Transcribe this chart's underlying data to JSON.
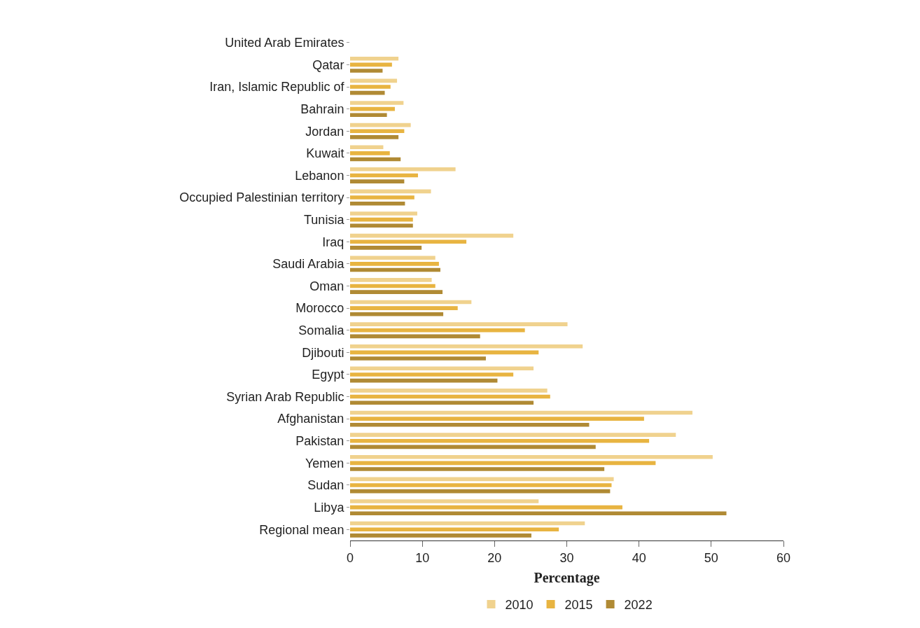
{
  "chart_data": {
    "type": "bar",
    "orientation": "horizontal",
    "xlabel": "Percentage",
    "categories": [
      "United Arab Emirates",
      "Qatar",
      "Iran, Islamic Republic of",
      "Bahrain",
      "Jordan",
      "Kuwait",
      "Lebanon",
      "Occupied Palestinian territory",
      "Tunisia",
      "Iraq",
      "Saudi Arabia",
      "Oman",
      "Morocco",
      "Somalia",
      "Djibouti",
      "Egypt",
      "Syrian Arab Republic",
      "Afghanistan",
      "Pakistan",
      "Yemen",
      "Sudan",
      "Libya",
      "Regional mean"
    ],
    "series": [
      {
        "name": "2010",
        "color": "#f0d28e",
        "values": [
          null,
          6.7,
          6.5,
          7.4,
          8.4,
          4.6,
          14.6,
          11.2,
          9.3,
          22.6,
          11.8,
          11.3,
          16.8,
          30.1,
          32.2,
          25.4,
          27.3,
          47.4,
          45.1,
          50.2,
          36.5,
          26.1,
          32.5
        ]
      },
      {
        "name": "2015",
        "color": "#e8b441",
        "values": [
          null,
          5.8,
          5.6,
          6.2,
          7.5,
          5.5,
          9.4,
          8.9,
          8.7,
          16.1,
          12.3,
          11.8,
          14.9,
          24.2,
          26.1,
          22.6,
          27.7,
          40.7,
          41.4,
          42.3,
          36.2,
          37.7,
          28.9
        ]
      },
      {
        "name": "2022",
        "color": "#b08a34",
        "values": [
          null,
          4.5,
          4.8,
          5.1,
          6.7,
          7.0,
          7.5,
          7.6,
          8.7,
          9.9,
          12.5,
          12.8,
          12.9,
          18.0,
          18.8,
          20.4,
          25.4,
          33.1,
          34.0,
          35.2,
          36.0,
          52.1,
          25.1
        ]
      }
    ],
    "xlim": [
      0,
      60
    ],
    "xticks": [
      0,
      10,
      20,
      30,
      40,
      50,
      60
    ],
    "grid": false,
    "legend": "bottom"
  }
}
